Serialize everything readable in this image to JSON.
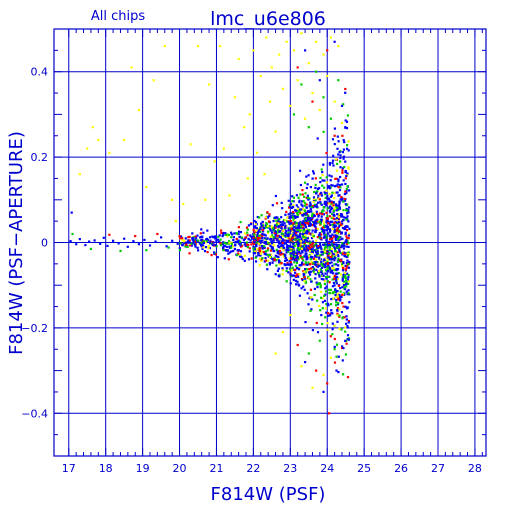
{
  "header": {
    "subset": "All chips",
    "title": "lmc_u6e806"
  },
  "chart_data": {
    "type": "scatter",
    "title": "lmc_u6e806",
    "annotation": "All chips",
    "xlabel": "F814W (PSF)",
    "ylabel": "F814W (PSF−APERTURE)",
    "xlim": [
      16.6,
      28.3
    ],
    "ylim": [
      -0.5,
      0.5
    ],
    "x_ticks": [
      "17",
      "18",
      "19",
      "20",
      "21",
      "22",
      "23",
      "24",
      "25",
      "26",
      "27",
      "28"
    ],
    "y_ticks": [
      "−0.4",
      "−0.2",
      "0",
      "0.2",
      "0.4"
    ],
    "x_tick_values": [
      17,
      18,
      19,
      20,
      21,
      22,
      23,
      24,
      25,
      26,
      27,
      28
    ],
    "y_tick_values": [
      -0.4,
      -0.2,
      0,
      0.2,
      0.4
    ],
    "grid": true,
    "legend": "none",
    "colors": {
      "axes": "#0000cc",
      "chip_colors": [
        "#ffff00",
        "#00cc00",
        "#ff0000",
        "#0000ff"
      ]
    },
    "point_colors": [
      "#ffff00",
      "#00cc00",
      "#ff0000",
      "#0000ff"
    ],
    "point_size": 2.2,
    "points": [
      [
        17.05,
        0.003,
        3
      ],
      [
        17.2,
        -0.004,
        3
      ],
      [
        17.3,
        0.008,
        3
      ],
      [
        17.45,
        -0.006,
        3
      ],
      [
        17.55,
        0.002,
        3
      ],
      [
        17.7,
        0.005,
        3
      ],
      [
        17.85,
        -0.003,
        3
      ],
      [
        17.95,
        0.011,
        3
      ],
      [
        18.05,
        -0.008,
        3
      ],
      [
        18.2,
        0.004,
        3
      ],
      [
        18.35,
        -0.002,
        3
      ],
      [
        18.5,
        0.009,
        3
      ],
      [
        18.6,
        -0.01,
        3
      ],
      [
        18.75,
        0.003,
        3
      ],
      [
        18.9,
        -0.004,
        3
      ],
      [
        19.05,
        0.006,
        3
      ],
      [
        19.2,
        -0.007,
        3
      ],
      [
        19.35,
        0.002,
        3
      ],
      [
        19.5,
        0.012,
        3
      ],
      [
        19.65,
        -0.009,
        3
      ],
      [
        19.8,
        0.004,
        3
      ],
      [
        19.95,
        -0.003,
        3
      ],
      [
        17.1,
        0.02,
        1
      ],
      [
        17.6,
        -0.015,
        1
      ],
      [
        18.1,
        0.018,
        2
      ],
      [
        18.4,
        -0.02,
        1
      ],
      [
        18.8,
        0.015,
        2
      ],
      [
        19.1,
        -0.018,
        1
      ],
      [
        19.4,
        0.02,
        2
      ],
      [
        19.7,
        -0.012,
        1
      ],
      [
        20.0,
        0.015,
        2
      ],
      [
        17.08,
        0.07,
        3
      ],
      [
        17.3,
        0.16,
        0
      ],
      [
        17.5,
        0.22,
        0
      ],
      [
        17.65,
        0.27,
        0
      ],
      [
        17.8,
        0.24,
        0
      ],
      [
        18.1,
        0.21,
        0
      ],
      [
        18.5,
        0.24,
        0
      ],
      [
        18.7,
        0.41,
        0
      ],
      [
        18.9,
        0.31,
        0
      ],
      [
        19.1,
        0.13,
        0
      ],
      [
        19.3,
        0.38,
        0
      ],
      [
        19.6,
        0.46,
        0
      ],
      [
        19.8,
        0.1,
        0
      ],
      [
        19.9,
        0.05,
        0
      ],
      [
        20.1,
        0.09,
        0
      ],
      [
        20.3,
        0.23,
        0
      ],
      [
        20.5,
        0.46,
        0
      ],
      [
        20.7,
        0.1,
        0
      ],
      [
        20.8,
        0.37,
        0
      ],
      [
        20.95,
        0.19,
        0
      ],
      [
        21.1,
        0.46,
        0
      ],
      [
        21.2,
        0.22,
        0
      ],
      [
        21.35,
        0.11,
        0
      ],
      [
        21.5,
        0.34,
        0
      ],
      [
        21.6,
        0.43,
        0
      ],
      [
        21.75,
        0.27,
        0
      ],
      [
        21.85,
        0.15,
        0
      ],
      [
        21.9,
        0.3,
        0
      ],
      [
        22.0,
        0.45,
        0
      ],
      [
        22.1,
        0.21,
        0
      ],
      [
        22.2,
        0.39,
        0
      ],
      [
        22.3,
        0.16,
        0
      ],
      [
        22.35,
        0.48,
        0
      ],
      [
        22.45,
        0.33,
        0
      ],
      [
        22.5,
        0.41,
        0
      ],
      [
        22.6,
        0.26,
        0
      ],
      [
        22.7,
        0.44,
        0
      ],
      [
        22.8,
        0.36,
        0
      ],
      [
        22.9,
        0.47,
        0
      ],
      [
        23.0,
        0.32,
        0
      ],
      [
        23.1,
        0.45,
        0
      ],
      [
        23.2,
        0.38,
        0
      ],
      [
        23.3,
        0.49,
        0
      ],
      [
        23.4,
        0.29,
        0
      ],
      [
        23.5,
        0.42,
        0
      ],
      [
        23.6,
        0.35,
        0
      ],
      [
        23.7,
        0.47,
        0
      ],
      [
        23.8,
        0.31,
        0
      ],
      [
        23.9,
        0.44,
        0
      ],
      [
        24.0,
        0.39,
        0
      ],
      [
        24.1,
        0.48,
        0
      ],
      [
        24.2,
        0.33,
        0
      ],
      [
        24.3,
        0.46,
        0
      ],
      [
        24.4,
        0.28,
        0
      ],
      [
        23.1,
        0.3,
        1
      ],
      [
        23.3,
        0.37,
        1
      ],
      [
        23.5,
        0.27,
        1
      ],
      [
        23.7,
        0.4,
        1
      ],
      [
        23.9,
        0.34,
        1
      ],
      [
        24.1,
        0.29,
        1
      ],
      [
        24.3,
        0.38,
        1
      ],
      [
        23.2,
        0.41,
        2
      ],
      [
        23.6,
        0.33,
        2
      ],
      [
        24.0,
        0.45,
        2
      ],
      [
        24.2,
        0.25,
        2
      ],
      [
        23.4,
        0.45,
        3
      ],
      [
        23.8,
        0.38,
        3
      ],
      [
        24.2,
        0.47,
        3
      ],
      [
        24.4,
        0.32,
        3
      ],
      [
        22.6,
        -0.26,
        0
      ],
      [
        22.8,
        -0.21,
        0
      ],
      [
        23.0,
        -0.17,
        0
      ],
      [
        23.3,
        -0.29,
        0
      ],
      [
        23.6,
        -0.34,
        0
      ],
      [
        23.9,
        -0.31,
        0
      ],
      [
        24.1,
        -0.27,
        0
      ],
      [
        23.5,
        -0.26,
        1
      ],
      [
        23.8,
        -0.23,
        1
      ],
      [
        24.2,
        -0.25,
        1
      ],
      [
        23.2,
        -0.24,
        2
      ],
      [
        23.7,
        -0.3,
        2
      ],
      [
        24.0,
        -0.33,
        2
      ],
      [
        24.05,
        -0.4,
        2
      ],
      [
        23.4,
        -0.28,
        3
      ],
      [
        23.9,
        -0.35,
        3
      ],
      [
        24.25,
        -0.3,
        3
      ],
      [
        23.75,
        -0.21,
        3
      ],
      [
        24.15,
        -0.19,
        3
      ],
      [
        23.55,
        -0.16,
        1
      ]
    ],
    "clouds": [
      {
        "x": [
          20.0,
          22.0
        ],
        "y_center": 0.0,
        "spread_start": 0.015,
        "spread_end": 0.04,
        "n": 260
      },
      {
        "x": [
          22.0,
          23.0
        ],
        "y_center": 0.005,
        "spread_start": 0.04,
        "spread_end": 0.08,
        "n": 450
      },
      {
        "x": [
          23.0,
          24.0
        ],
        "y_center": 0.01,
        "spread_start": 0.08,
        "spread_end": 0.16,
        "n": 900
      },
      {
        "x": [
          24.0,
          24.6
        ],
        "y_center": 0.0,
        "spread_start": 0.16,
        "spread_end": 0.26,
        "n": 650
      }
    ]
  }
}
